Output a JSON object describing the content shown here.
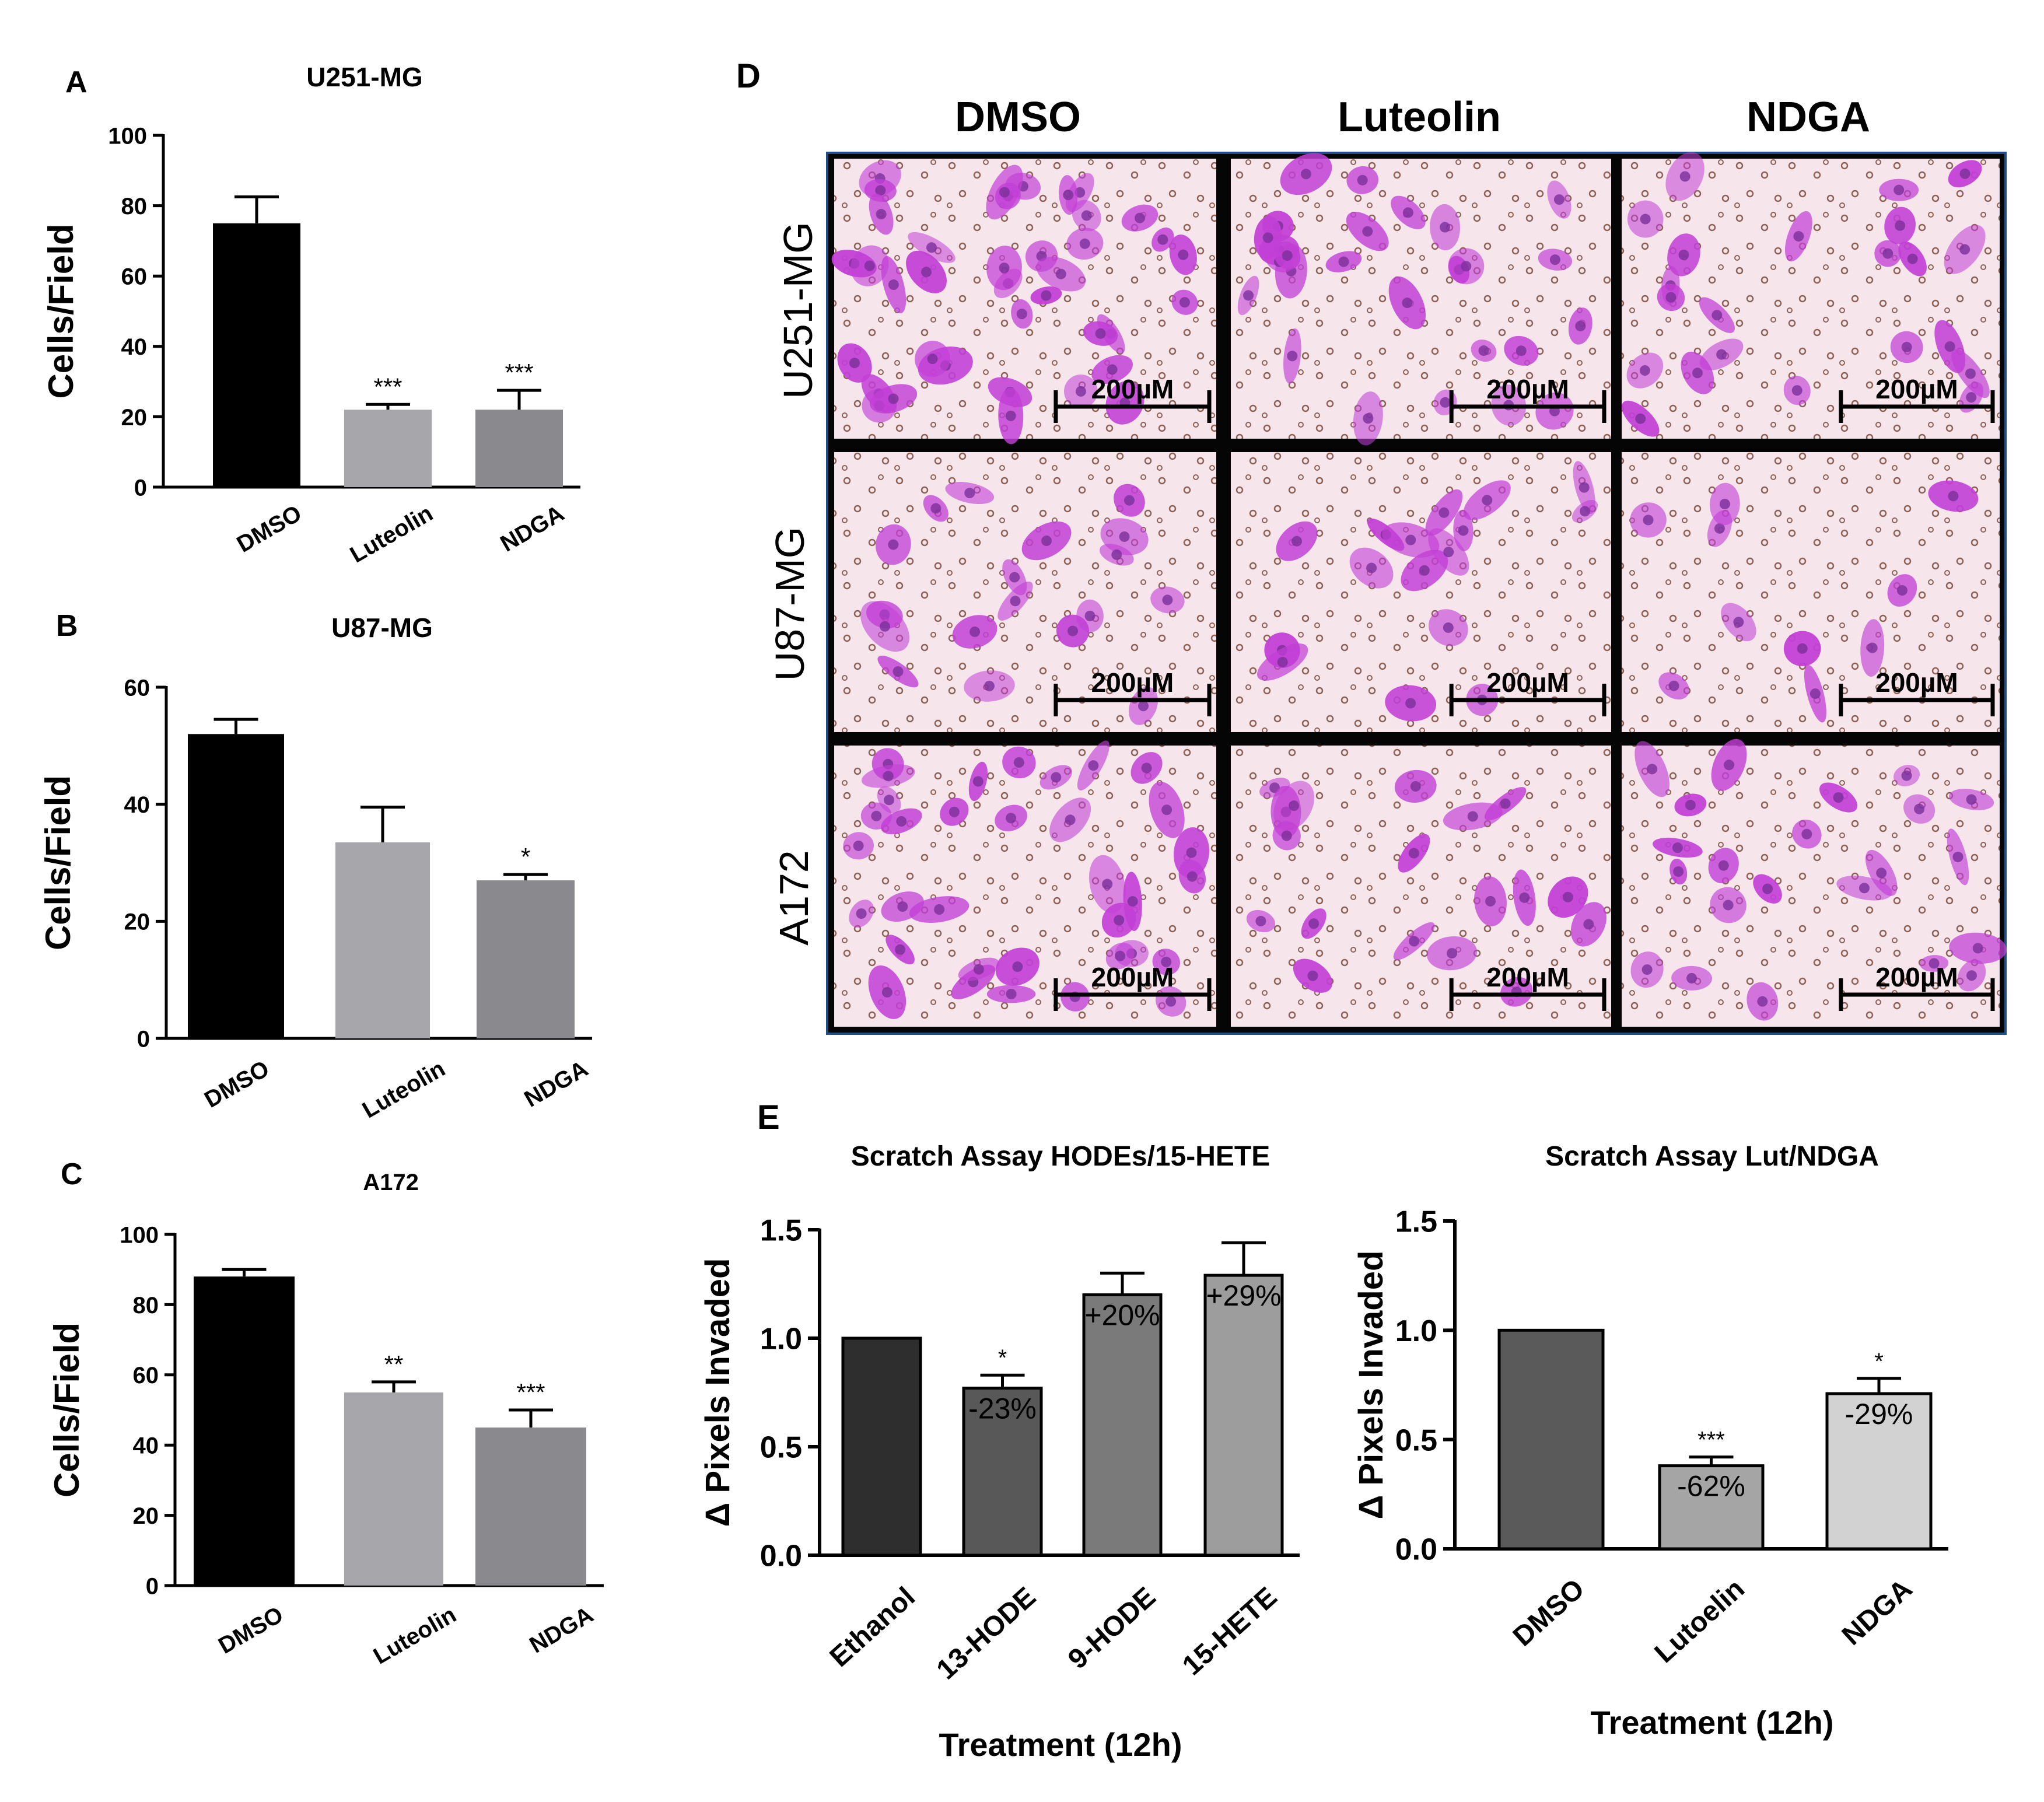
{
  "figure": {
    "panel_labels": {
      "a": "A",
      "b": "B",
      "c": "C",
      "d": "D",
      "e": "E"
    },
    "micrograph": {
      "col_headers": [
        "DMSO",
        "Luteolin",
        "NDGA"
      ],
      "row_labels": [
        "U251-MG",
        "U87-MG",
        "A172"
      ],
      "scale_bar_label": "200µM",
      "stain_color": "#c23fd6",
      "background_color": "#f6e6ec"
    }
  },
  "chart_data": [
    {
      "id": "A",
      "type": "bar",
      "title": "U251-MG",
      "categories": [
        "DMSO",
        "Luteolin",
        "NDGA"
      ],
      "values": [
        75,
        22,
        22
      ],
      "errors": [
        7.5,
        1.5,
        5.5
      ],
      "significance": [
        "",
        "***",
        "***"
      ],
      "ylabel": "Cells/Field",
      "xlabel": "",
      "ylim": [
        0,
        100
      ],
      "yticks": [
        0,
        20,
        40,
        60,
        80,
        100
      ],
      "colors": [
        "#000000",
        "#a7a7ab",
        "#8a8a8e"
      ]
    },
    {
      "id": "B",
      "type": "bar",
      "title": "U87-MG",
      "categories": [
        "DMSO",
        "Luteolin",
        "NDGA"
      ],
      "values": [
        52,
        33.5,
        27
      ],
      "errors": [
        2.5,
        6,
        1
      ],
      "significance": [
        "",
        "",
        "*"
      ],
      "ylabel": "Cells/Field",
      "xlabel": "",
      "ylim": [
        0,
        60
      ],
      "yticks": [
        0,
        20,
        40,
        60
      ],
      "colors": [
        "#000000",
        "#a7a7ab",
        "#8a8a8e"
      ]
    },
    {
      "id": "C",
      "type": "bar",
      "title": "A172",
      "categories": [
        "DMSO",
        "Luteolin",
        "NDGA"
      ],
      "values": [
        88,
        55,
        45
      ],
      "errors": [
        2,
        3,
        5
      ],
      "significance": [
        "",
        "**",
        "***"
      ],
      "ylabel": "Cells/Field",
      "xlabel": "",
      "ylim": [
        0,
        100
      ],
      "yticks": [
        0,
        20,
        40,
        60,
        80,
        100
      ],
      "colors": [
        "#000000",
        "#a7a7ab",
        "#8a8a8e"
      ]
    },
    {
      "id": "E1",
      "type": "bar",
      "title": "Scratch Assay HODEs/15-HETE",
      "categories": [
        "Ethanol",
        "13-HODE",
        "9-HODE",
        "15-HETE"
      ],
      "values": [
        1.0,
        0.77,
        1.2,
        1.29
      ],
      "errors": [
        0,
        0.06,
        0.1,
        0.15
      ],
      "significance": [
        "",
        "*",
        "",
        ""
      ],
      "annotations": [
        "",
        "-23%",
        "+20%",
        "+29%"
      ],
      "ylabel": "Δ Pixels Invaded",
      "xlabel": "Treatment (12h)",
      "ylim": [
        0,
        1.5
      ],
      "yticks": [
        "0.0",
        "0.5",
        "1.0",
        "1.5"
      ],
      "colors": [
        "#2e2e2e",
        "#585858",
        "#7a7a7a",
        "#9d9d9d"
      ]
    },
    {
      "id": "E2",
      "type": "bar",
      "title": "Scratch Assay Lut/NDGA",
      "categories": [
        "DMSO",
        "Lutoelin",
        "NDGA"
      ],
      "values": [
        1.0,
        0.38,
        0.71
      ],
      "errors": [
        0,
        0.04,
        0.07
      ],
      "significance": [
        "",
        "***",
        "*"
      ],
      "annotations": [
        "",
        "-62%",
        "-29%"
      ],
      "ylabel": "Δ Pixels Invaded",
      "xlabel": "Treatment (12h)",
      "ylim": [
        0,
        1.5
      ],
      "yticks": [
        "0.0",
        "0.5",
        "1.0",
        "1.5"
      ],
      "colors": [
        "#5a5a5a",
        "#a5a5a5",
        "#d2d2d2"
      ]
    }
  ]
}
